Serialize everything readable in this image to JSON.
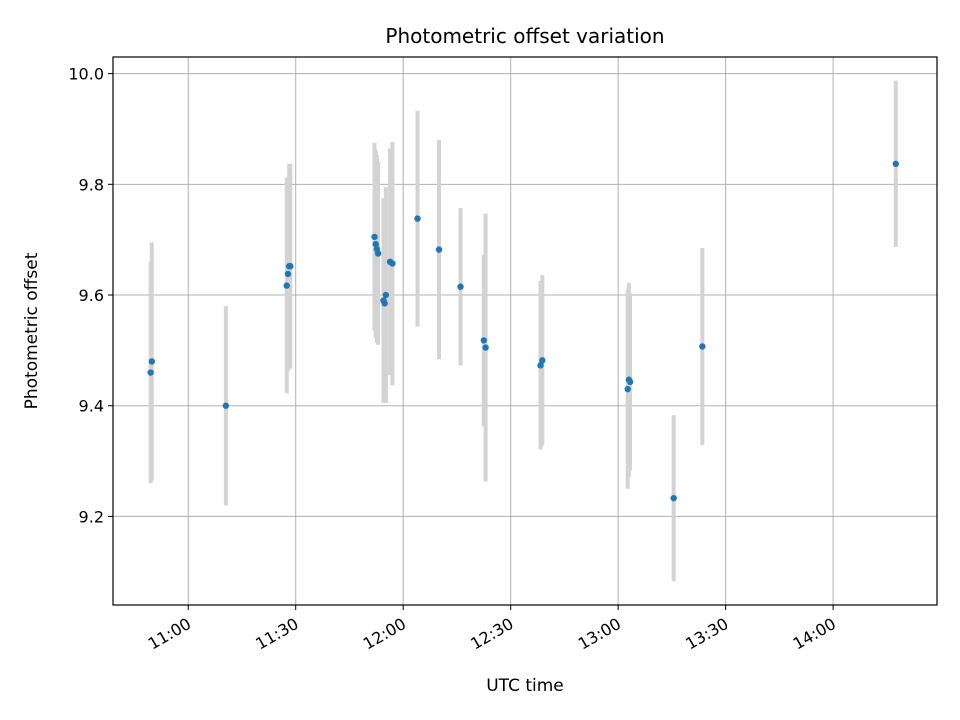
{
  "chart_data": {
    "type": "scatter",
    "title": "Photometric offset variation",
    "xlabel": "UTC time",
    "ylabel": "Photometric offset",
    "xlim": [
      "10:39",
      "14:29"
    ],
    "ylim": [
      9.04,
      10.03
    ],
    "x_ticks": [
      "11:00",
      "11:30",
      "12:00",
      "12:30",
      "13:00",
      "13:30",
      "14:00"
    ],
    "y_ticks": [
      "9.2",
      "9.4",
      "9.6",
      "9.8",
      "10.0"
    ],
    "grid": true,
    "marker_color": "#1f77b4",
    "errorbar_color": "#d3d3d3",
    "points": [
      {
        "t": "10:49:30",
        "y": 9.46,
        "err": 0.2
      },
      {
        "t": "10:49:50",
        "y": 9.48,
        "err": 0.215
      },
      {
        "t": "11:10:30",
        "y": 9.4,
        "err": 0.18
      },
      {
        "t": "11:27:30",
        "y": 9.617,
        "err": 0.195
      },
      {
        "t": "11:27:50",
        "y": 9.638,
        "err": 0.175
      },
      {
        "t": "11:28:10",
        "y": 9.652,
        "err": 0.185
      },
      {
        "t": "11:28:30",
        "y": 9.652,
        "err": 0.185
      },
      {
        "t": "11:52:00",
        "y": 9.705,
        "err": 0.17
      },
      {
        "t": "11:52:20",
        "y": 9.692,
        "err": 0.17
      },
      {
        "t": "11:52:40",
        "y": 9.683,
        "err": 0.17
      },
      {
        "t": "11:53:00",
        "y": 9.675,
        "err": 0.165
      },
      {
        "t": "11:54:30",
        "y": 9.59,
        "err": 0.185
      },
      {
        "t": "11:54:50",
        "y": 9.585,
        "err": 0.18
      },
      {
        "t": "11:55:10",
        "y": 9.6,
        "err": 0.195
      },
      {
        "t": "11:56:20",
        "y": 9.66,
        "err": 0.205
      },
      {
        "t": "11:57:00",
        "y": 9.657,
        "err": 0.22
      },
      {
        "t": "12:04:00",
        "y": 9.738,
        "err": 0.195
      },
      {
        "t": "12:10:00",
        "y": 9.682,
        "err": 0.198
      },
      {
        "t": "12:16:00",
        "y": 9.615,
        "err": 0.142
      },
      {
        "t": "12:22:30",
        "y": 9.518,
        "err": 0.155
      },
      {
        "t": "12:23:00",
        "y": 9.505,
        "err": 0.242
      },
      {
        "t": "12:38:20",
        "y": 9.473,
        "err": 0.152
      },
      {
        "t": "12:38:50",
        "y": 9.482,
        "err": 0.154
      },
      {
        "t": "13:02:40",
        "y": 9.43,
        "err": 0.18
      },
      {
        "t": "13:03:00",
        "y": 9.447,
        "err": 0.175
      },
      {
        "t": "13:03:20",
        "y": 9.443,
        "err": 0.16
      },
      {
        "t": "13:15:30",
        "y": 9.233,
        "err": 0.15
      },
      {
        "t": "13:23:30",
        "y": 9.507,
        "err": 0.178
      },
      {
        "t": "14:17:30",
        "y": 9.837,
        "err": 0.15
      }
    ]
  }
}
